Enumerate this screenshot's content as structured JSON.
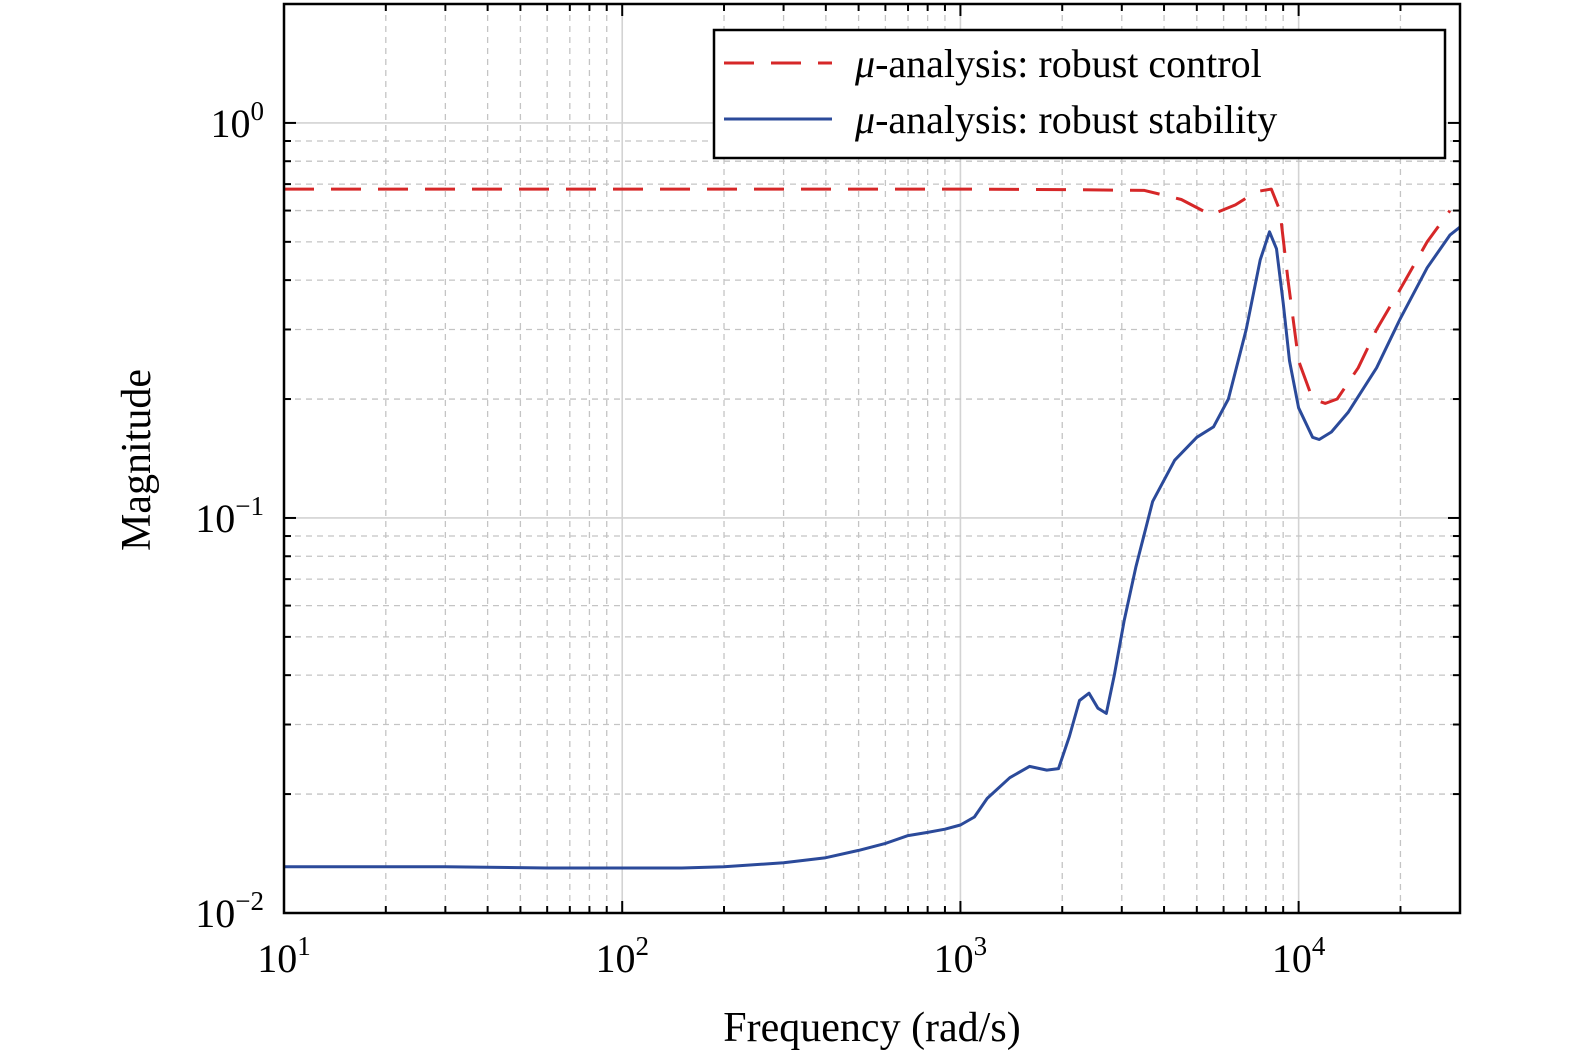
{
  "chart_data": {
    "type": "line",
    "title": "",
    "xlabel": "Frequency (rad/s)",
    "ylabel": "Magnitude",
    "xscale": "log",
    "yscale": "log",
    "xlim": [
      10,
      30000
    ],
    "ylim": [
      0.01,
      2.0
    ],
    "grid": true,
    "legend_position": "top-right",
    "x_ticks": [
      {
        "value": 10,
        "base": "10",
        "exp": "1"
      },
      {
        "value": 100,
        "base": "10",
        "exp": "2"
      },
      {
        "value": 1000,
        "base": "10",
        "exp": "3"
      },
      {
        "value": 10000,
        "base": "10",
        "exp": "4"
      }
    ],
    "y_ticks": [
      {
        "value": 0.01,
        "base": "10",
        "exp": "−2"
      },
      {
        "value": 0.1,
        "base": "10",
        "exp": "−1"
      },
      {
        "value": 1,
        "base": "10",
        "exp": "0"
      }
    ],
    "series": [
      {
        "name_prefix": "μ",
        "name": "-analysis: robust control",
        "color": "#d62728",
        "dash": "dashed",
        "points": [
          [
            10,
            0.68
          ],
          [
            100,
            0.68
          ],
          [
            1000,
            0.68
          ],
          [
            2000,
            0.678
          ],
          [
            3500,
            0.675
          ],
          [
            4500,
            0.64
          ],
          [
            5500,
            0.585
          ],
          [
            6500,
            0.62
          ],
          [
            7500,
            0.67
          ],
          [
            8300,
            0.68
          ],
          [
            8800,
            0.6
          ],
          [
            9300,
            0.4
          ],
          [
            10000,
            0.25
          ],
          [
            11000,
            0.2
          ],
          [
            12000,
            0.195
          ],
          [
            13000,
            0.2
          ],
          [
            15000,
            0.24
          ],
          [
            17000,
            0.3
          ],
          [
            20000,
            0.38
          ],
          [
            24000,
            0.5
          ],
          [
            28000,
            0.6
          ]
        ]
      },
      {
        "name_prefix": "μ",
        "name": "-analysis: robust stability",
        "color": "#2b4a9a",
        "dash": "solid",
        "points": [
          [
            10,
            0.0131
          ],
          [
            30,
            0.0131
          ],
          [
            60,
            0.013
          ],
          [
            100,
            0.013
          ],
          [
            150,
            0.013
          ],
          [
            200,
            0.0131
          ],
          [
            300,
            0.0134
          ],
          [
            400,
            0.0138
          ],
          [
            500,
            0.0144
          ],
          [
            600,
            0.015
          ],
          [
            700,
            0.0157
          ],
          [
            800,
            0.016
          ],
          [
            900,
            0.0163
          ],
          [
            1000,
            0.0167
          ],
          [
            1100,
            0.0175
          ],
          [
            1200,
            0.0195
          ],
          [
            1400,
            0.022
          ],
          [
            1600,
            0.0235
          ],
          [
            1800,
            0.023
          ],
          [
            1950,
            0.0232
          ],
          [
            2100,
            0.028
          ],
          [
            2250,
            0.0345
          ],
          [
            2400,
            0.036
          ],
          [
            2550,
            0.033
          ],
          [
            2700,
            0.032
          ],
          [
            2850,
            0.04
          ],
          [
            3050,
            0.055
          ],
          [
            3300,
            0.075
          ],
          [
            3700,
            0.11
          ],
          [
            4300,
            0.14
          ],
          [
            5000,
            0.16
          ],
          [
            5600,
            0.17
          ],
          [
            6200,
            0.2
          ],
          [
            7000,
            0.3
          ],
          [
            7700,
            0.45
          ],
          [
            8200,
            0.53
          ],
          [
            8600,
            0.48
          ],
          [
            9000,
            0.35
          ],
          [
            9400,
            0.25
          ],
          [
            10000,
            0.19
          ],
          [
            11000,
            0.16
          ],
          [
            11500,
            0.158
          ],
          [
            12500,
            0.165
          ],
          [
            14000,
            0.185
          ],
          [
            17000,
            0.24
          ],
          [
            20000,
            0.32
          ],
          [
            24000,
            0.43
          ],
          [
            28000,
            0.52
          ],
          [
            30000,
            0.545
          ]
        ]
      }
    ]
  }
}
